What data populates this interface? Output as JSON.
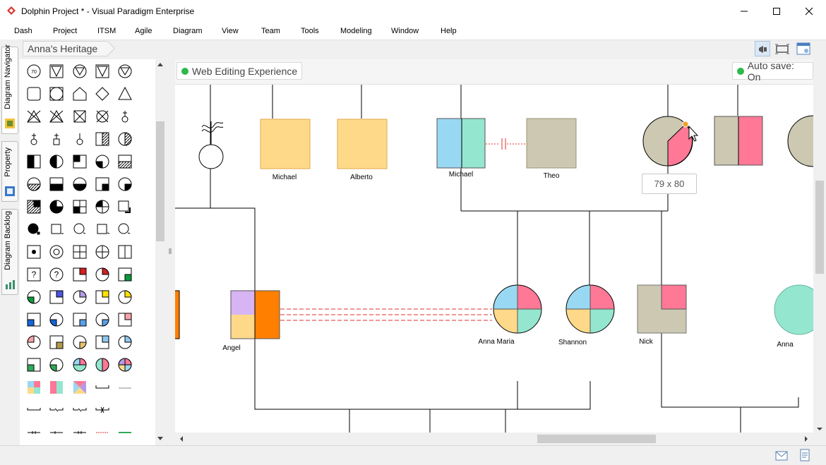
{
  "window": {
    "title": "Dolphin Project * - Visual Paradigm Enterprise",
    "minimize_icon": "minimize-icon",
    "maximize_icon": "maximize-icon",
    "close_icon": "close-icon"
  },
  "menu": {
    "items": [
      {
        "label": "Dash"
      },
      {
        "label": "Project"
      },
      {
        "label": "ITSM"
      },
      {
        "label": "Agile"
      },
      {
        "label": "Diagram"
      },
      {
        "label": "View"
      },
      {
        "label": "Team"
      },
      {
        "label": "Tools"
      },
      {
        "label": "Modeling"
      },
      {
        "label": "Window"
      },
      {
        "label": "Help"
      }
    ]
  },
  "left_tabs": [
    {
      "label": "Diagram Navigator",
      "icon": "diagram-navigator-icon"
    },
    {
      "label": "Property",
      "icon": "property-icon"
    },
    {
      "label": "Diagram Backlog",
      "icon": "diagram-backlog-icon"
    }
  ],
  "breadcrumb": {
    "label": "Anna's Heritage"
  },
  "toolbar": {
    "icons": [
      "announcement-icon",
      "fit-diagram-icon",
      "diagram-overview-icon"
    ]
  },
  "palette": {
    "first_symbol_label": "70"
  },
  "canvas": {
    "web_editing_label": "Web Editing Experience",
    "auto_save_label": "Auto save: On",
    "status_color": "#2db84b",
    "size_tooltip": "79 x 80"
  },
  "genogram": {
    "colors": {
      "yellow": "#ffd98a",
      "blue": "#99d8f2",
      "teal": "#94e6cf",
      "gray": "#cdc8b1",
      "pink": "#ff7896",
      "orange": "#ff8000",
      "purple": "#d7b4f3",
      "relation_red": "#e03030"
    },
    "people": [
      {
        "name": "Michael"
      },
      {
        "name": "Alberto"
      },
      {
        "name": "Michael"
      },
      {
        "name": "Theo"
      },
      {
        "name": "Angel"
      },
      {
        "name": "Anna Maria"
      },
      {
        "name": "Shannon"
      },
      {
        "name": "Nick"
      },
      {
        "name": "Anna"
      }
    ]
  },
  "statusbar": {
    "icons": [
      "mail-icon",
      "notes-icon"
    ]
  }
}
